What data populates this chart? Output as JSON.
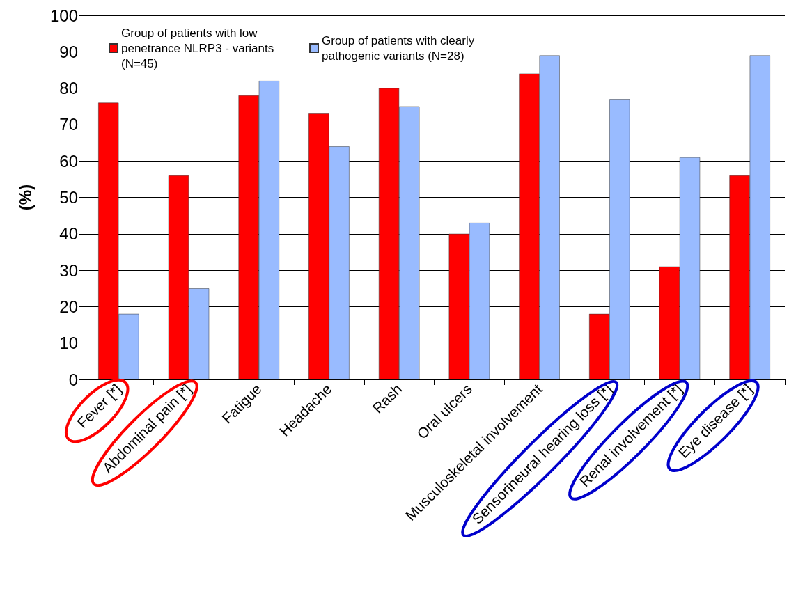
{
  "chart_data": {
    "type": "bar",
    "ylabel": "(%)",
    "categories": [
      "Fever [*]",
      "Abdominal pain [*]",
      "Fatigue",
      "Headache",
      "Rash",
      "Oral ulcers",
      "Musculoskeletal involvement",
      "Sensorineural hearing loss [*]",
      "Renal involvement [*]",
      "Eye disease [*]"
    ],
    "series": [
      {
        "name": "Group of patients with low penetrance NLRP3 - variants (N=45)",
        "color": "#ff0000",
        "values": [
          76,
          56,
          78,
          73,
          80,
          40,
          84,
          18,
          31,
          56
        ]
      },
      {
        "name": "Group of patients with clearly pathogenic variants (N=28)",
        "color": "#99bbff",
        "values": [
          18,
          25,
          82,
          64,
          75,
          43,
          89,
          77,
          61,
          89
        ]
      }
    ],
    "ylim": [
      0,
      100
    ],
    "yticks": [
      0,
      10,
      20,
      30,
      40,
      50,
      60,
      70,
      80,
      90,
      100
    ],
    "grid": "y",
    "legend": "top left"
  }
}
